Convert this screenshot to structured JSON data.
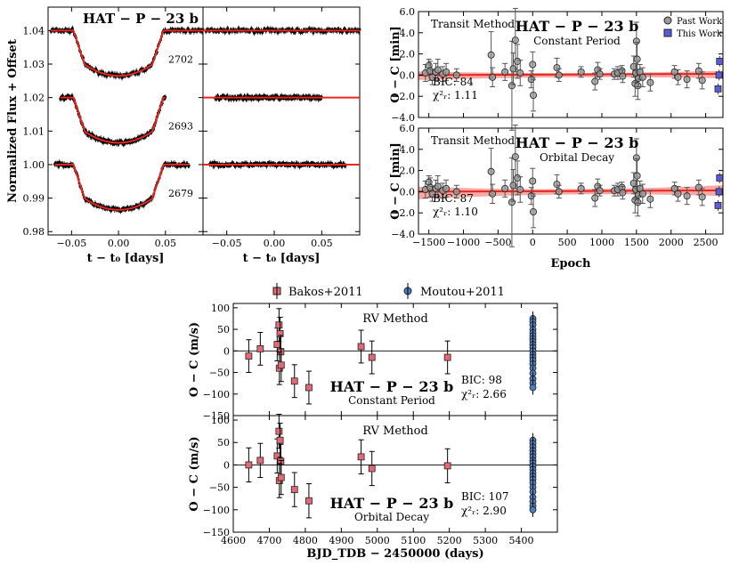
{
  "figure": {
    "caption_planet": "HAT − P − 23 b"
  },
  "chart_data": [
    {
      "id": "lightcurves",
      "type": "scatter",
      "title": "HAT − P − 23 b",
      "xlabel": "t − t₀ [days]",
      "ylabel": "Normalized Flux + Offset",
      "xlim": [
        -0.075,
        0.09
      ],
      "ylim": [
        0.979,
        1.047
      ],
      "xticks": [
        "−0.05",
        "0.00",
        "0.05"
      ],
      "xtick_values": [
        -0.05,
        0,
        0.05
      ],
      "yticks": [
        "0.98",
        "0.99",
        "1.00",
        "1.01",
        "1.02",
        "1.03",
        "1.04"
      ],
      "ytick_values": [
        0.98,
        0.99,
        1.0,
        1.01,
        1.02,
        1.03,
        1.04
      ],
      "transit_depth": 0.0135,
      "series": [
        {
          "name": "2702",
          "epoch": 2702,
          "offset": 1.04,
          "x_range": [
            -0.072,
            0.09
          ]
        },
        {
          "name": "2693",
          "epoch": 2693,
          "offset": 1.02,
          "x_range": [
            -0.062,
            0.05
          ]
        },
        {
          "name": "2679",
          "epoch": 2679,
          "offset": 1.0,
          "x_range": [
            -0.068,
            0.075
          ]
        }
      ],
      "panels": [
        "light curves with transit model",
        "residuals"
      ]
    },
    {
      "id": "transit_oc",
      "type": "scatter",
      "title": "HAT − P − 23 b",
      "xlabel": "Epoch",
      "ylabel": "O − C [min]",
      "xlim": [
        -1650,
        2750
      ],
      "ylim": [
        -4,
        6
      ],
      "xticks": [
        "−1500",
        "−1000",
        "−500",
        "0",
        "500",
        "1000",
        "1500",
        "2000",
        "2500"
      ],
      "xtick_values": [
        -1500,
        -1000,
        -500,
        0,
        500,
        1000,
        1500,
        2000,
        2500
      ],
      "yticks": [
        "−4.0",
        "−2.0",
        "0.0",
        "2.0",
        "4.0",
        "6.0"
      ],
      "ytick_values": [
        -4,
        -2,
        0,
        2,
        4,
        6
      ],
      "method_label": "Transit Method",
      "legend": [
        "Past Work",
        "This Work"
      ],
      "legend_position": "top-right",
      "past_work": [
        {
          "x": -1550,
          "y": 0.2,
          "err": 0.8
        },
        {
          "x": -1500,
          "y": 0.9,
          "err": 0.6
        },
        {
          "x": -1480,
          "y": 0.4,
          "err": 0.9
        },
        {
          "x": -1450,
          "y": -0.2,
          "err": 0.7
        },
        {
          "x": -1400,
          "y": 0.3,
          "err": 0.8
        },
        {
          "x": -1370,
          "y": 0.5,
          "err": 1.0
        },
        {
          "x": -1300,
          "y": 0.1,
          "err": 0.7
        },
        {
          "x": -1250,
          "y": 0.3,
          "err": 0.8
        },
        {
          "x": -1100,
          "y": 0.0,
          "err": 0.6
        },
        {
          "x": -600,
          "y": 1.9,
          "err": 2.2
        },
        {
          "x": -580,
          "y": -0.2,
          "err": 0.9
        },
        {
          "x": -400,
          "y": 0.3,
          "err": 0.8
        },
        {
          "x": -300,
          "y": -1.0,
          "err": 4.2
        },
        {
          "x": -280,
          "y": 0.6,
          "err": 1.5
        },
        {
          "x": -250,
          "y": 3.3,
          "err": 3.0
        },
        {
          "x": -220,
          "y": 1.3,
          "err": 1.6
        },
        {
          "x": -180,
          "y": 0.2,
          "err": 1.2
        },
        {
          "x": -20,
          "y": -0.4,
          "err": 0.8
        },
        {
          "x": 0,
          "y": 1.0,
          "err": 1.2
        },
        {
          "x": 10,
          "y": -1.9,
          "err": 1.5
        },
        {
          "x": 350,
          "y": 0.7,
          "err": 0.9
        },
        {
          "x": 380,
          "y": 0.0,
          "err": 0.6
        },
        {
          "x": 700,
          "y": 0.3,
          "err": 0.5
        },
        {
          "x": 900,
          "y": -0.6,
          "err": 0.8
        },
        {
          "x": 940,
          "y": 0.5,
          "err": 0.7
        },
        {
          "x": 970,
          "y": 0.1,
          "err": 0.5
        },
        {
          "x": 1180,
          "y": 0.1,
          "err": 0.5
        },
        {
          "x": 1230,
          "y": 0.2,
          "err": 0.6
        },
        {
          "x": 1290,
          "y": 0.4,
          "err": 0.5
        },
        {
          "x": 1300,
          "y": -0.1,
          "err": 0.6
        },
        {
          "x": 1460,
          "y": 0.8,
          "err": 1.0
        },
        {
          "x": 1480,
          "y": -0.8,
          "err": 1.2
        },
        {
          "x": 1490,
          "y": 0.2,
          "err": 0.9
        },
        {
          "x": 1500,
          "y": 3.2,
          "err": 1.8
        },
        {
          "x": 1510,
          "y": 1.5,
          "err": 1.6
        },
        {
          "x": 1520,
          "y": -1.0,
          "err": 1.3
        },
        {
          "x": 1530,
          "y": -0.3,
          "err": 0.8
        },
        {
          "x": 1550,
          "y": 0.3,
          "err": 0.7
        },
        {
          "x": 1590,
          "y": -0.2,
          "err": 0.9
        },
        {
          "x": 1700,
          "y": -0.7,
          "err": 0.8
        },
        {
          "x": 2050,
          "y": 0.3,
          "err": 0.6
        },
        {
          "x": 2100,
          "y": -0.2,
          "err": 0.7
        },
        {
          "x": 2230,
          "y": -0.4,
          "err": 0.8
        },
        {
          "x": 2400,
          "y": 0.4,
          "err": 0.7
        },
        {
          "x": 2450,
          "y": -0.5,
          "err": 0.8
        }
      ],
      "this_work": [
        {
          "x": 2702,
          "y": 1.3,
          "err": 0.5
        },
        {
          "x": 2693,
          "y": 0.0,
          "err": 0.5
        },
        {
          "x": 2679,
          "y": -1.3,
          "err": 0.5
        }
      ],
      "panels": [
        {
          "model": "Constant Period",
          "bic_label": "BIC: 84",
          "chi_label": "χ²ᵣ: 1.11",
          "decay": false
        },
        {
          "model": "Orbital Decay",
          "bic_label": "BIC: 87",
          "chi_label": "χ²ᵣ: 1.10",
          "decay": true
        }
      ]
    },
    {
      "id": "rv_oc",
      "type": "scatter",
      "title": "HAT − P − 23 b",
      "xlabel": "BJD_TDB − 2450000 (days)",
      "ylabel": "O − C (m/s)",
      "xlim": [
        4600,
        5500
      ],
      "ylim": [
        -150,
        110
      ],
      "xticks": [
        "4600",
        "4700",
        "4800",
        "4900",
        "5000",
        "5100",
        "5200",
        "5300",
        "5400"
      ],
      "xtick_values": [
        4600,
        4700,
        4800,
        4900,
        5000,
        5100,
        5200,
        5300,
        5400
      ],
      "yticks": [
        "−150",
        "−100",
        "−50",
        "0",
        "50",
        "100"
      ],
      "ytick_values": [
        -150,
        -100,
        -50,
        0,
        50,
        100
      ],
      "method_label": "RV Method",
      "legend": [
        "Bakos+2011",
        "Moutou+2011"
      ],
      "legend_position": "top-center",
      "panels": [
        {
          "model": "Constant Period",
          "bic_label": "BIC: 98",
          "chi_label": "χ²ᵣ: 2.66",
          "bakos": [
            {
              "x": 4643,
              "y": -12,
              "err": 38
            },
            {
              "x": 4675,
              "y": 5,
              "err": 38
            },
            {
              "x": 4722,
              "y": 15,
              "err": 38
            },
            {
              "x": 4727,
              "y": 60,
              "err": 38
            },
            {
              "x": 4730,
              "y": 40,
              "err": 38
            },
            {
              "x": 4732,
              "y": -2,
              "err": 38
            },
            {
              "x": 4728,
              "y": -40,
              "err": 38
            },
            {
              "x": 4733,
              "y": -33,
              "err": 38
            },
            {
              "x": 4770,
              "y": -70,
              "err": 38
            },
            {
              "x": 4810,
              "y": -85,
              "err": 38
            },
            {
              "x": 4955,
              "y": 10,
              "err": 38
            },
            {
              "x": 4985,
              "y": -15,
              "err": 38
            },
            {
              "x": 5195,
              "y": -15,
              "err": 38
            }
          ],
          "moutou": [
            {
              "x": 5432,
              "y": 75
            },
            {
              "x": 5432,
              "y": 68
            },
            {
              "x": 5432,
              "y": 60
            },
            {
              "x": 5432,
              "y": 50
            },
            {
              "x": 5432,
              "y": 42
            },
            {
              "x": 5432,
              "y": 35
            },
            {
              "x": 5432,
              "y": 28
            },
            {
              "x": 5432,
              "y": 22
            },
            {
              "x": 5432,
              "y": 15
            },
            {
              "x": 5432,
              "y": 8
            },
            {
              "x": 5432,
              "y": 0
            },
            {
              "x": 5432,
              "y": -8
            },
            {
              "x": 5432,
              "y": -15
            },
            {
              "x": 5432,
              "y": -22
            },
            {
              "x": 5432,
              "y": -30
            },
            {
              "x": 5432,
              "y": -40
            },
            {
              "x": 5432,
              "y": -52
            },
            {
              "x": 5432,
              "y": -65
            },
            {
              "x": 5432,
              "y": -75
            },
            {
              "x": 5432,
              "y": -85
            }
          ]
        },
        {
          "model": "Orbital Decay",
          "bic_label": "BIC: 107",
          "chi_label": "χ²ᵣ: 2.90",
          "bakos": [
            {
              "x": 4643,
              "y": 0,
              "err": 38
            },
            {
              "x": 4675,
              "y": 10,
              "err": 38
            },
            {
              "x": 4722,
              "y": 20,
              "err": 38
            },
            {
              "x": 4727,
              "y": 75,
              "err": 38
            },
            {
              "x": 4730,
              "y": 55,
              "err": 38
            },
            {
              "x": 4732,
              "y": 8,
              "err": 38
            },
            {
              "x": 4728,
              "y": -35,
              "err": 38
            },
            {
              "x": 4733,
              "y": -28,
              "err": 38
            },
            {
              "x": 4770,
              "y": -55,
              "err": 38
            },
            {
              "x": 4810,
              "y": -80,
              "err": 38
            },
            {
              "x": 4955,
              "y": 18,
              "err": 38
            },
            {
              "x": 4985,
              "y": -8,
              "err": 38
            },
            {
              "x": 5195,
              "y": -2,
              "err": 38
            }
          ],
          "moutou": [
            {
              "x": 5432,
              "y": 55
            },
            {
              "x": 5432,
              "y": 48
            },
            {
              "x": 5432,
              "y": 40
            },
            {
              "x": 5432,
              "y": 32
            },
            {
              "x": 5432,
              "y": 25
            },
            {
              "x": 5432,
              "y": 18
            },
            {
              "x": 5432,
              "y": 10
            },
            {
              "x": 5432,
              "y": 4
            },
            {
              "x": 5432,
              "y": -3
            },
            {
              "x": 5432,
              "y": -10
            },
            {
              "x": 5432,
              "y": -18
            },
            {
              "x": 5432,
              "y": -25
            },
            {
              "x": 5432,
              "y": -32
            },
            {
              "x": 5432,
              "y": -40
            },
            {
              "x": 5432,
              "y": -50
            },
            {
              "x": 5432,
              "y": -60
            },
            {
              "x": 5432,
              "y": -72
            },
            {
              "x": 5432,
              "y": -82
            },
            {
              "x": 5432,
              "y": -92
            },
            {
              "x": 5432,
              "y": -100
            }
          ]
        }
      ]
    }
  ],
  "colors": {
    "model": "#e8261f",
    "band": "#f4a09a",
    "past": "#999999",
    "this": "#5b5bd6",
    "bakos": "#e06b77",
    "moutou": "#4a7fc0"
  }
}
